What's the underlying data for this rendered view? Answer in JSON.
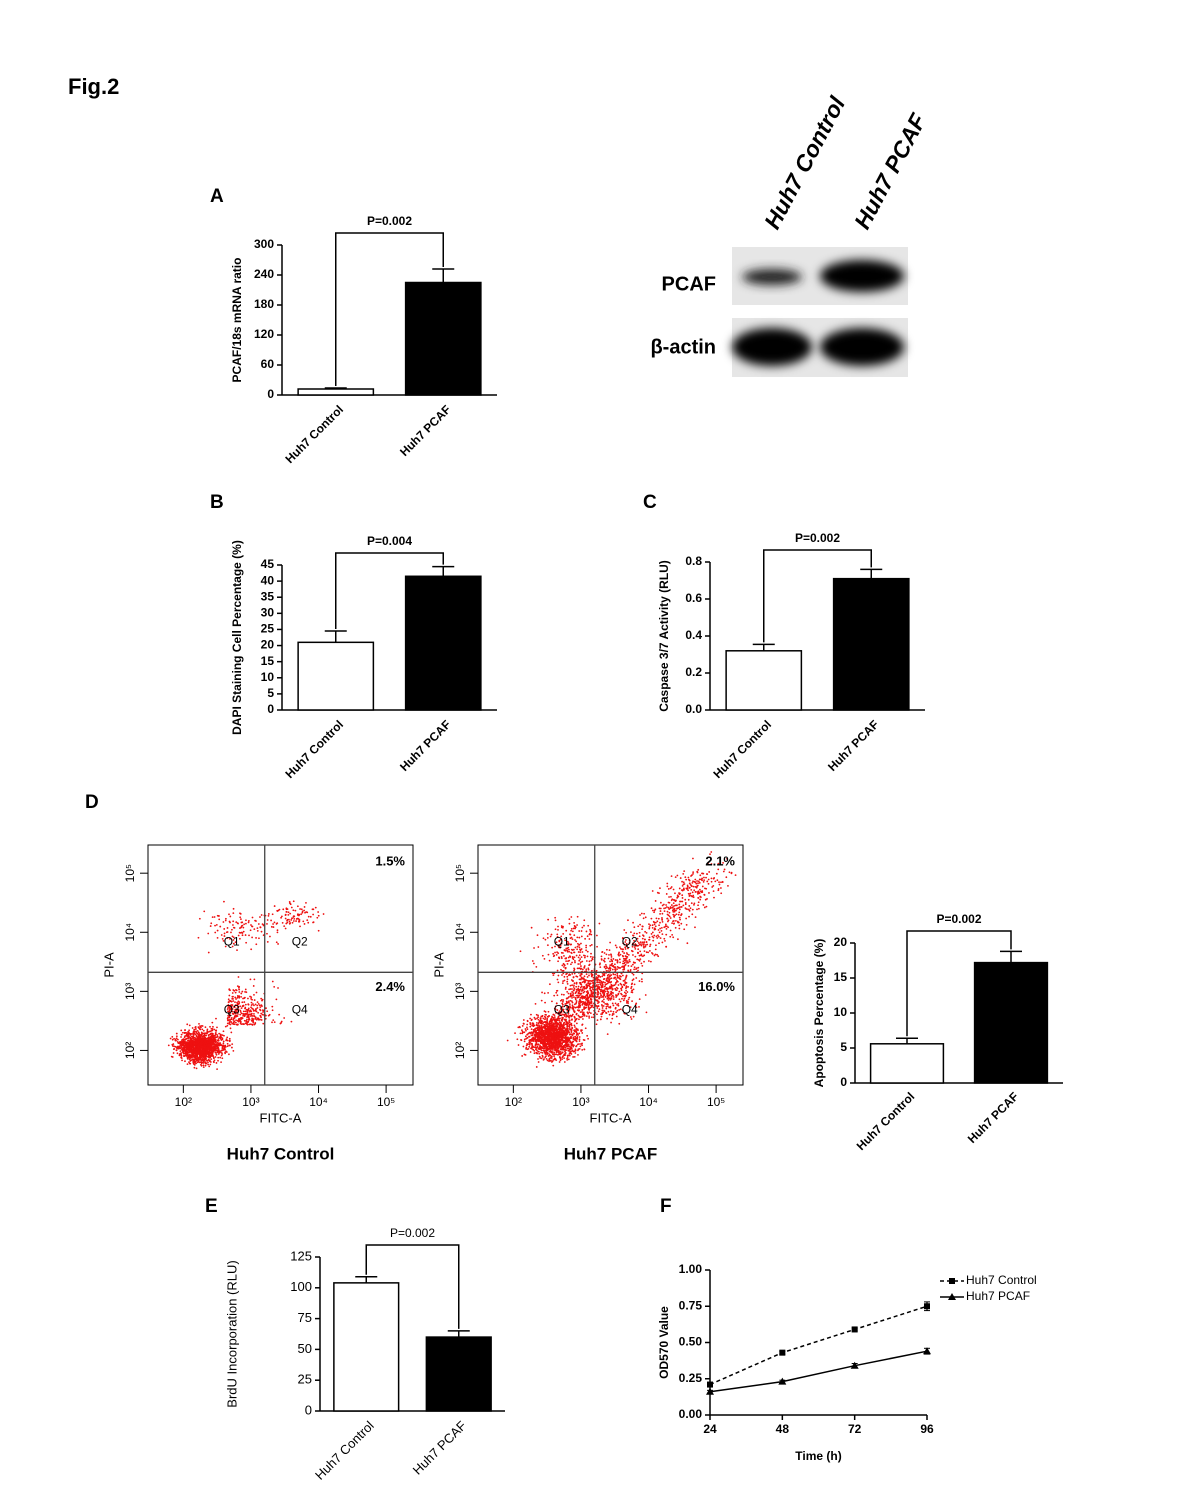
{
  "figure_label": "Fig.2",
  "blot": {
    "lanes": [
      "Huh7 Control",
      "Huh7 PCAF"
    ],
    "rows": [
      "PCAF",
      "β-actin"
    ]
  },
  "chart_data": [
    {
      "panel": "A",
      "type": "bar",
      "categories": [
        "Huh7 Control",
        "Huh7 PCAF"
      ],
      "values": [
        12,
        225
      ],
      "errors": [
        2,
        27
      ],
      "colors": [
        "#ffffff",
        "#000000"
      ],
      "ylabel": "PCAF/18s mRNA ratio",
      "ylim": [
        0,
        300
      ],
      "yticks": [
        0,
        60,
        120,
        180,
        240,
        300
      ],
      "annotation": "P=0.002"
    },
    {
      "panel": "B",
      "type": "bar",
      "categories": [
        "Huh7 Control",
        "Huh7 PCAF"
      ],
      "values": [
        21,
        41.5
      ],
      "errors": [
        3.5,
        3
      ],
      "colors": [
        "#ffffff",
        "#000000"
      ],
      "ylabel": "DAPI Staining Cell Percentage (%)",
      "ylim": [
        0,
        45
      ],
      "yticks": [
        0,
        5,
        10,
        15,
        20,
        25,
        30,
        35,
        40,
        45
      ],
      "annotation": "P=0.004"
    },
    {
      "panel": "C",
      "type": "bar",
      "categories": [
        "Huh7 Control",
        "Huh7 PCAF"
      ],
      "values": [
        0.32,
        0.71
      ],
      "errors": [
        0.035,
        0.05
      ],
      "colors": [
        "#ffffff",
        "#000000"
      ],
      "ylabel": "Caspase 3/7 Activity (RLU)",
      "ylim": [
        0,
        0.8
      ],
      "yticks": [
        {
          "value": 0,
          "label": "0.0"
        },
        0.2,
        0.4,
        0.6,
        0.8
      ],
      "annotation": "P=0.002"
    },
    {
      "panel": "D",
      "type": "flow",
      "title": "Huh7 Control",
      "xlabel": "FITC-A",
      "ylabel": "PI-A",
      "log_scale": true,
      "xlim": [
        30,
        250000
      ],
      "ylim": [
        26,
        300000
      ],
      "xticks": [
        {
          "value": 100,
          "label": "10²"
        },
        {
          "value": 1000,
          "label": "10³"
        },
        {
          "value": 10000,
          "label": "10⁴"
        },
        {
          "value": 100000,
          "label": "10⁵"
        }
      ],
      "yticks": [
        {
          "value": 100,
          "label": "10²"
        },
        {
          "value": 1000,
          "label": "10³"
        },
        {
          "value": 10000,
          "label": "10⁴"
        },
        {
          "value": 100000,
          "label": "10⁵"
        }
      ],
      "gate": [
        1600,
        2100
      ],
      "quadrants": [
        "Q1",
        "Q2",
        "Q3",
        "Q4"
      ],
      "quadrant_percentages": [
        "1.5%",
        "2.4%"
      ]
    },
    {
      "type": "flow",
      "title": "Huh7 PCAF",
      "xlabel": "FITC-A",
      "ylabel": "PI-A",
      "log_scale": true,
      "xlim": [
        30,
        250000
      ],
      "ylim": [
        26,
        300000
      ],
      "xticks": [
        {
          "value": 100,
          "label": "10²"
        },
        {
          "value": 1000,
          "label": "10³"
        },
        {
          "value": 10000,
          "label": "10⁴"
        },
        {
          "value": 100000,
          "label": "10⁵"
        }
      ],
      "yticks": [
        {
          "value": 100,
          "label": "10²"
        },
        {
          "value": 1000,
          "label": "10³"
        },
        {
          "value": 10000,
          "label": "10⁴"
        },
        {
          "value": 100000,
          "label": "10⁵"
        }
      ],
      "gate": [
        1600,
        2100
      ],
      "quadrants": [
        "Q1",
        "Q2",
        "Q3",
        "Q4"
      ],
      "quadrant_percentages": [
        "2.1%",
        "16.0%"
      ]
    },
    {
      "type": "bar",
      "categories": [
        "Huh7 Control",
        "Huh7 PCAF"
      ],
      "values": [
        5.6,
        17.2
      ],
      "errors": [
        0.8,
        1.6
      ],
      "colors": [
        "#ffffff",
        "#000000"
      ],
      "ylabel": "Apoptosis Percentage (%)",
      "ylim": [
        0,
        20
      ],
      "yticks": [
        0,
        5,
        10,
        15,
        20
      ],
      "annotation": "P=0.002"
    },
    {
      "panel": "E",
      "type": "bar",
      "categories": [
        "Huh7 Control",
        "Huh7 PCAF"
      ],
      "values": [
        104,
        60
      ],
      "errors": [
        5,
        5
      ],
      "colors": [
        "#ffffff",
        "#000000"
      ],
      "ylabel": "BrdU Incorporation (RLU)",
      "ylim": [
        0,
        125
      ],
      "yticks": [
        0,
        25,
        50,
        75,
        100,
        125
      ],
      "annotation": "P=0.002"
    },
    {
      "panel": "F",
      "type": "line",
      "x": [
        24,
        48,
        72,
        96
      ],
      "xlim": [
        24,
        96
      ],
      "xticks": [
        24,
        48,
        72,
        96
      ],
      "xlabel": "Time (h)",
      "ylabel": "OD570 Value",
      "ylim": [
        0,
        1
      ],
      "yticks": [
        {
          "value": 0,
          "label": "0.00"
        },
        {
          "value": 0.25,
          "label": "0.25"
        },
        {
          "value": 0.5,
          "label": "0.50"
        },
        {
          "value": 0.75,
          "label": "0.75"
        },
        {
          "value": 1,
          "label": "1.00"
        }
      ],
      "series": [
        {
          "name": "Huh7 Control",
          "color": "#000000",
          "dashed": true,
          "marker": "square",
          "values": [
            0.21,
            0.43,
            0.59,
            0.75
          ],
          "errors": [
            0.01,
            0.01,
            0.01,
            0.03
          ]
        },
        {
          "name": "Huh7 PCAF",
          "color": "#000000",
          "dashed": false,
          "marker": "triangle",
          "values": [
            0.16,
            0.23,
            0.34,
            0.44
          ],
          "errors": [
            0.01,
            0.01,
            0.015,
            0.02
          ]
        }
      ]
    }
  ]
}
